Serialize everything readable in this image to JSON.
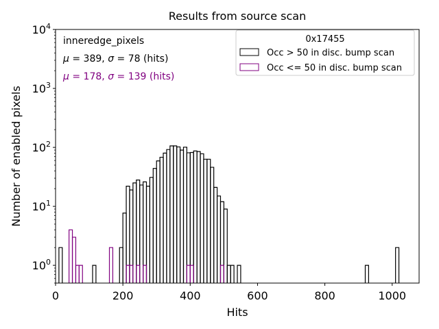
{
  "chart_data": {
    "type": "histogram",
    "title": "Results from source scan",
    "xlabel": "Hits",
    "ylabel": "Number of enabled pixels",
    "xlim": [
      0,
      1080
    ],
    "ylim": [
      0.5,
      10000
    ],
    "yscale": "log",
    "bin_width": 10,
    "x_ticks": [
      0,
      200,
      400,
      600,
      800,
      1000
    ],
    "x_tick_labels": [
      "0",
      "200",
      "400",
      "600",
      "800",
      "1000"
    ],
    "y_ticks": [
      1,
      10,
      100,
      1000,
      10000
    ],
    "y_tick_labels": [
      {
        "base": "10",
        "exp": "0"
      },
      {
        "base": "10",
        "exp": "1"
      },
      {
        "base": "10",
        "exp": "2"
      },
      {
        "base": "10",
        "exp": "3"
      },
      {
        "base": "10",
        "exp": "4"
      }
    ],
    "legend": {
      "position": "upper right",
      "title": "0x17455",
      "entries": [
        "Occ > 50 in disc. bump scan",
        "Occ <= 50 in disc. bump scan"
      ]
    },
    "annotations": {
      "label": "inneredge_pixels",
      "stats": [
        {
          "mu_sym": "μ",
          "mu_text": " = 389, ",
          "sigma_sym": "σ",
          "sigma_text": " = 78 (hits)",
          "color": "#000000"
        },
        {
          "mu_sym": "μ",
          "mu_text": " = 178, ",
          "sigma_sym": "σ",
          "sigma_text": " = 139 (hits)",
          "color": "#800080"
        }
      ]
    },
    "series": [
      {
        "name": "Occ > 50 in disc. bump scan",
        "color": "#000000",
        "bins": [
          [
            10,
            2
          ],
          [
            110,
            1
          ],
          [
            190,
            2
          ],
          [
            200,
            7.7
          ],
          [
            210,
            22
          ],
          [
            220,
            19
          ],
          [
            230,
            25
          ],
          [
            240,
            28
          ],
          [
            250,
            23
          ],
          [
            260,
            26
          ],
          [
            270,
            22
          ],
          [
            280,
            31
          ],
          [
            290,
            44
          ],
          [
            300,
            59
          ],
          [
            310,
            68
          ],
          [
            320,
            80
          ],
          [
            330,
            92
          ],
          [
            340,
            106
          ],
          [
            350,
            106
          ],
          [
            360,
            102
          ],
          [
            370,
            90
          ],
          [
            380,
            101
          ],
          [
            390,
            81
          ],
          [
            400,
            82
          ],
          [
            410,
            87
          ],
          [
            420,
            85
          ],
          [
            430,
            78
          ],
          [
            440,
            63
          ],
          [
            450,
            63
          ],
          [
            460,
            46
          ],
          [
            470,
            21
          ],
          [
            480,
            15
          ],
          [
            490,
            12
          ],
          [
            500,
            9
          ],
          [
            510,
            1
          ],
          [
            520,
            1
          ],
          [
            540,
            1
          ],
          [
            920,
            1
          ],
          [
            1010,
            2
          ]
        ]
      },
      {
        "name": "Occ <= 50 in disc. bump scan",
        "color": "#800080",
        "bins": [
          [
            40,
            4
          ],
          [
            50,
            3
          ],
          [
            60,
            1
          ],
          [
            70,
            1
          ],
          [
            160,
            2
          ],
          [
            210,
            1
          ],
          [
            220,
            1
          ],
          [
            240,
            1
          ],
          [
            260,
            1
          ],
          [
            390,
            1
          ],
          [
            400,
            1
          ],
          [
            490,
            1
          ]
        ]
      }
    ]
  }
}
